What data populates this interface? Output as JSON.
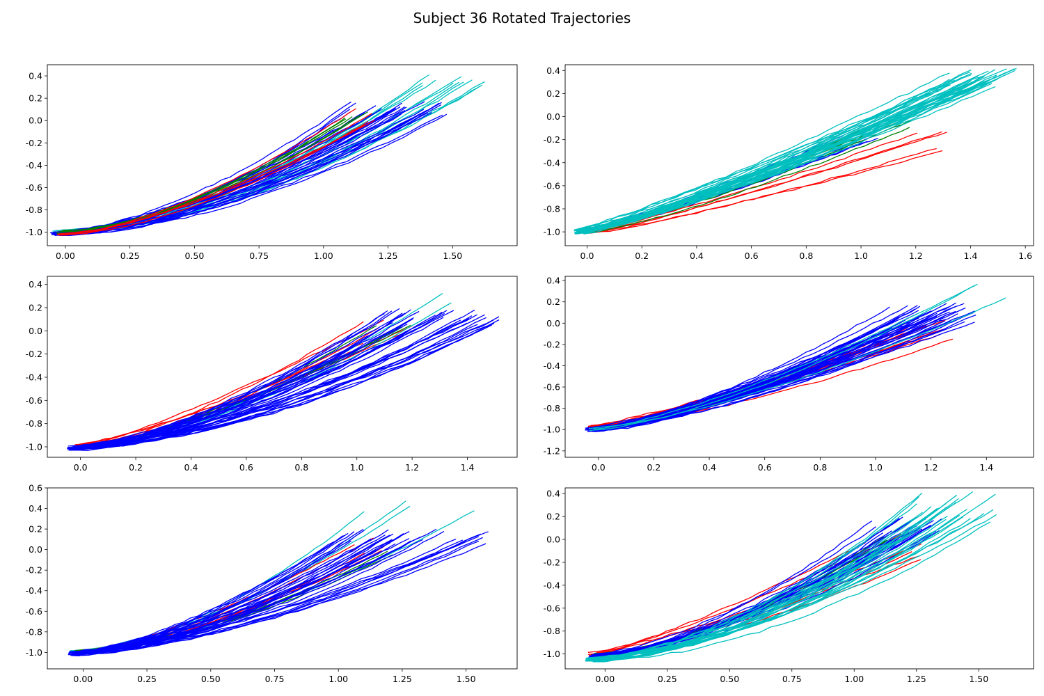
{
  "figure": {
    "title": "Subject 36 Rotated Trajectories"
  },
  "colors": {
    "red": "#ff0000",
    "green": "#008000",
    "blue": "#0000ff",
    "cyan": "#00bfbf"
  },
  "chart_data": [
    {
      "type": "line",
      "xlim": [
        -0.07,
        1.75
      ],
      "ylim": [
        -1.12,
        0.5
      ],
      "xticks": [
        "0.00",
        "0.25",
        "0.50",
        "0.75",
        "1.00",
        "1.25",
        "1.50"
      ],
      "yticks": [
        "-1.0",
        "-0.8",
        "-0.6",
        "-0.4",
        "-0.2",
        "0.0",
        "0.2",
        "0.4"
      ],
      "grid": false,
      "series": [
        {
          "color": "cyan",
          "count": 12,
          "start": [
            -0.03,
            -1.0
          ],
          "end_x": [
            1.38,
            1.65
          ],
          "end_y": [
            0.3,
            0.42
          ],
          "bend": [
            0.6,
            0.75
          ],
          "spread": 0.06
        },
        {
          "color": "blue",
          "count": 30,
          "start": [
            -0.04,
            -1.01
          ],
          "end_x": [
            1.1,
            1.48
          ],
          "end_y": [
            0.05,
            0.17
          ],
          "bend": [
            0.5,
            0.75
          ],
          "spread": 0.05
        },
        {
          "color": "green",
          "count": 5,
          "start": [
            -0.02,
            -1.0
          ],
          "end_x": [
            1.07,
            1.2
          ],
          "end_y": [
            0.0,
            0.1
          ],
          "bend": [
            0.5,
            0.7
          ],
          "spread": 0.03
        },
        {
          "color": "red",
          "count": 5,
          "start": [
            -0.02,
            -1.01
          ],
          "end_x": [
            1.05,
            1.2
          ],
          "end_y": [
            -0.1,
            0.12
          ],
          "bend": [
            0.45,
            0.7
          ],
          "spread": 0.03
        }
      ]
    },
    {
      "type": "line",
      "xlim": [
        -0.08,
        1.63
      ],
      "ylim": [
        -1.12,
        0.45
      ],
      "xticks": [
        "0.0",
        "0.2",
        "0.4",
        "0.6",
        "0.8",
        "1.0",
        "1.2",
        "1.4",
        "1.6"
      ],
      "yticks": [
        "-1.0",
        "-0.8",
        "-0.6",
        "-0.4",
        "-0.2",
        "0.0",
        "0.2",
        "0.4"
      ],
      "grid": false,
      "series": [
        {
          "color": "blue",
          "count": 8,
          "start": [
            -0.02,
            -1.0
          ],
          "end_x": [
            0.9,
            1.15
          ],
          "end_y": [
            -0.3,
            -0.15
          ],
          "bend": [
            0.1,
            0.3
          ],
          "spread": 0.06
        },
        {
          "color": "red",
          "count": 5,
          "start": [
            0.0,
            -1.0
          ],
          "end_x": [
            1.2,
            1.32
          ],
          "end_y": [
            -0.3,
            -0.1
          ],
          "bend": [
            0.1,
            0.25
          ],
          "spread": 0.04
        },
        {
          "color": "green",
          "count": 5,
          "start": [
            -0.02,
            -1.0
          ],
          "end_x": [
            1.05,
            1.2
          ],
          "end_y": [
            -0.1,
            0.0
          ],
          "bend": [
            0.15,
            0.3
          ],
          "spread": 0.04
        },
        {
          "color": "cyan",
          "count": 35,
          "start": [
            -0.03,
            -1.0
          ],
          "end_x": [
            1.3,
            1.57
          ],
          "end_y": [
            0.25,
            0.42
          ],
          "bend": [
            0.1,
            0.3
          ],
          "spread": 0.06
        }
      ]
    },
    {
      "type": "line",
      "xlim": [
        -0.12,
        1.58
      ],
      "ylim": [
        -1.09,
        0.47
      ],
      "xticks": [
        "0.0",
        "0.2",
        "0.4",
        "0.6",
        "0.8",
        "1.0",
        "1.2",
        "1.4"
      ],
      "yticks": [
        "-1.0",
        "-0.8",
        "-0.6",
        "-0.4",
        "-0.2",
        "0.0",
        "0.2",
        "0.4"
      ],
      "grid": false,
      "series": [
        {
          "color": "red",
          "count": 6,
          "start": [
            -0.02,
            -1.0
          ],
          "end_x": [
            1.0,
            1.3
          ],
          "end_y": [
            -0.15,
            0.1
          ],
          "bend": [
            0.2,
            0.55
          ],
          "spread": 0.04
        },
        {
          "color": "green",
          "count": 4,
          "start": [
            -0.02,
            -1.0
          ],
          "end_x": [
            1.05,
            1.2
          ],
          "end_y": [
            0.0,
            0.1
          ],
          "bend": [
            0.4,
            0.6
          ],
          "spread": 0.03
        },
        {
          "color": "cyan",
          "count": 2,
          "start": [
            -0.02,
            -1.0
          ],
          "end_x": [
            1.3,
            1.4
          ],
          "end_y": [
            0.2,
            0.42
          ],
          "bend": [
            0.5,
            0.65
          ],
          "spread": 0.02
        },
        {
          "color": "blue",
          "count": 35,
          "start": [
            -0.03,
            -1.01
          ],
          "end_x": [
            1.1,
            1.52
          ],
          "end_y": [
            0.05,
            0.2
          ],
          "bend": [
            0.45,
            0.72
          ],
          "spread": 0.05
        }
      ]
    },
    {
      "type": "line",
      "xlim": [
        -0.12,
        1.57
      ],
      "ylim": [
        -1.26,
        0.44
      ],
      "xticks": [
        "0.0",
        "0.2",
        "0.4",
        "0.6",
        "0.8",
        "1.0",
        "1.2",
        "1.4"
      ],
      "yticks": [
        "-1.2",
        "-1.0",
        "-0.8",
        "-0.6",
        "-0.4",
        "-0.2",
        "0.0",
        "0.2",
        "0.4"
      ],
      "grid": false,
      "series": [
        {
          "color": "red",
          "count": 10,
          "start": [
            -0.03,
            -0.98
          ],
          "end_x": [
            1.1,
            1.3
          ],
          "end_y": [
            -0.2,
            0.05
          ],
          "bend": [
            0.2,
            0.5
          ],
          "spread": 0.05
        },
        {
          "color": "blue",
          "count": 40,
          "start": [
            -0.03,
            -1.0
          ],
          "end_x": [
            1.05,
            1.4
          ],
          "end_y": [
            0.0,
            0.2
          ],
          "bend": [
            0.25,
            0.55
          ],
          "spread": 0.05
        },
        {
          "color": "cyan",
          "count": 3,
          "start": [
            -0.02,
            -1.0
          ],
          "end_x": [
            1.3,
            1.48
          ],
          "end_y": [
            0.1,
            0.38
          ],
          "bend": [
            0.3,
            0.5
          ],
          "spread": 0.03
        }
      ]
    },
    {
      "type": "line",
      "xlim": [
        -0.14,
        1.7
      ],
      "ylim": [
        -1.16,
        0.6
      ],
      "xticks": [
        "0.00",
        "0.25",
        "0.50",
        "0.75",
        "1.00",
        "1.25",
        "1.50"
      ],
      "yticks": [
        "-1.0",
        "-0.8",
        "-0.6",
        "-0.4",
        "-0.2",
        "0.0",
        "0.2",
        "0.4",
        "0.6"
      ],
      "grid": false,
      "series": [
        {
          "color": "cyan",
          "count": 4,
          "start": [
            -0.04,
            -1.0
          ],
          "end_x": [
            1.1,
            1.6
          ],
          "end_y": [
            0.35,
            0.53
          ],
          "bend": [
            0.5,
            0.7
          ],
          "spread": 0.03
        },
        {
          "color": "red",
          "count": 5,
          "start": [
            -0.03,
            -1.0
          ],
          "end_x": [
            0.95,
            1.25
          ],
          "end_y": [
            -0.05,
            0.15
          ],
          "bend": [
            0.4,
            0.65
          ],
          "spread": 0.03
        },
        {
          "color": "green",
          "count": 3,
          "start": [
            -0.03,
            -1.0
          ],
          "end_x": [
            1.15,
            1.25
          ],
          "end_y": [
            -0.1,
            0.0
          ],
          "bend": [
            0.5,
            0.65
          ],
          "spread": 0.03
        },
        {
          "color": "blue",
          "count": 35,
          "start": [
            -0.04,
            -1.01
          ],
          "end_x": [
            1.0,
            1.6
          ],
          "end_y": [
            0.05,
            0.2
          ],
          "bend": [
            0.4,
            0.7
          ],
          "spread": 0.05
        }
      ]
    },
    {
      "type": "line",
      "xlim": [
        -0.16,
        1.72
      ],
      "ylim": [
        -1.13,
        0.45
      ],
      "xticks": [
        "0.00",
        "0.25",
        "0.50",
        "0.75",
        "1.00",
        "1.25",
        "1.50"
      ],
      "yticks": [
        "-1.0",
        "-0.8",
        "-0.6",
        "-0.4",
        "-0.2",
        "0.0",
        "0.2",
        "0.4"
      ],
      "grid": false,
      "series": [
        {
          "color": "red",
          "count": 6,
          "start": [
            -0.05,
            -1.0
          ],
          "end_x": [
            1.0,
            1.28
          ],
          "end_y": [
            -0.2,
            0.05
          ],
          "bend": [
            0.2,
            0.5
          ],
          "spread": 0.04
        },
        {
          "color": "green",
          "count": 3,
          "start": [
            -0.04,
            -1.0
          ],
          "end_x": [
            1.1,
            1.2
          ],
          "end_y": [
            -0.05,
            0.05
          ],
          "bend": [
            0.5,
            0.65
          ],
          "spread": 0.03
        },
        {
          "color": "blue",
          "count": 25,
          "start": [
            -0.05,
            -1.02
          ],
          "end_x": [
            1.05,
            1.37
          ],
          "end_y": [
            0.05,
            0.2
          ],
          "bend": [
            0.45,
            0.7
          ],
          "spread": 0.05
        },
        {
          "color": "cyan",
          "count": 25,
          "start": [
            -0.06,
            -1.05
          ],
          "end_x": [
            1.25,
            1.62
          ],
          "end_y": [
            0.15,
            0.42
          ],
          "bend": [
            0.55,
            0.8
          ],
          "spread": 0.05
        }
      ]
    }
  ]
}
